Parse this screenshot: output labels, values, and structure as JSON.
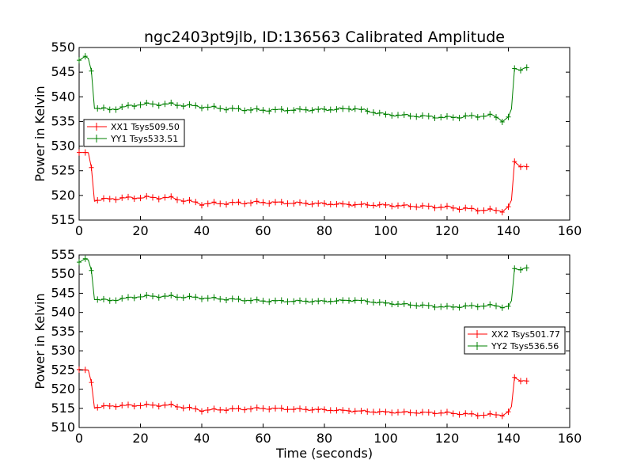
{
  "title": "ngc2403pt9jlb, ID:136563 Calibrated Amplitude",
  "chart_data": [
    {
      "type": "line",
      "title": "ngc2403pt9jlb, ID:136563 Calibrated Amplitude",
      "xlabel": "",
      "ylabel": "Power in Kelvin",
      "xlim": [
        0,
        160
      ],
      "ylim": [
        515,
        550
      ],
      "xticks": [
        0,
        20,
        40,
        60,
        80,
        100,
        120,
        140,
        160
      ],
      "yticks": [
        515,
        520,
        525,
        530,
        535,
        540,
        545,
        550
      ],
      "legend_position": "center-left",
      "series": [
        {
          "name": "XX1 Tsys509.50",
          "color": "#ff0000",
          "keyframes": [
            [
              0,
              528.6
            ],
            [
              2,
              528.6
            ],
            [
              3,
              528.5
            ],
            [
              4,
              525.8
            ],
            [
              5,
              519.0
            ],
            [
              10,
              519.3
            ],
            [
              20,
              519.6
            ],
            [
              30,
              519.5
            ],
            [
              40,
              518.3
            ],
            [
              60,
              518.6
            ],
            [
              80,
              518.3
            ],
            [
              100,
              518.0
            ],
            [
              120,
              517.6
            ],
            [
              130,
              517.1
            ],
            [
              138,
              516.9
            ],
            [
              140,
              517.6
            ],
            [
              141,
              519.0
            ],
            [
              142,
              526.6
            ],
            [
              144,
              526.0
            ],
            [
              146,
              526.0
            ]
          ]
        },
        {
          "name": "YY1 Tsys533.51",
          "color": "#008000",
          "keyframes": [
            [
              0,
              547.3
            ],
            [
              2,
              548.1
            ],
            [
              3,
              547.6
            ],
            [
              4,
              545.4
            ],
            [
              5,
              537.8
            ],
            [
              10,
              537.4
            ],
            [
              20,
              538.5
            ],
            [
              30,
              538.5
            ],
            [
              40,
              538.0
            ],
            [
              50,
              537.5
            ],
            [
              60,
              537.3
            ],
            [
              80,
              537.4
            ],
            [
              90,
              537.6
            ],
            [
              100,
              536.4
            ],
            [
              120,
              535.8
            ],
            [
              130,
              536.1
            ],
            [
              135,
              536.2
            ],
            [
              138,
              535.2
            ],
            [
              140,
              535.8
            ],
            [
              141,
              537.5
            ],
            [
              142,
              545.5
            ],
            [
              144,
              545.6
            ],
            [
              146,
              546.1
            ]
          ]
        }
      ]
    },
    {
      "type": "line",
      "title": "",
      "xlabel": "Time (seconds)",
      "ylabel": "Power in Kelvin",
      "xlim": [
        0,
        160
      ],
      "ylim": [
        510,
        555
      ],
      "xticks": [
        0,
        20,
        40,
        60,
        80,
        100,
        120,
        140,
        160
      ],
      "yticks": [
        510,
        515,
        520,
        525,
        530,
        535,
        540,
        545,
        550,
        555
      ],
      "legend_position": "center-right",
      "series": [
        {
          "name": "XX2 Tsys501.77",
          "color": "#ff0000",
          "keyframes": [
            [
              0,
              525.0
            ],
            [
              2,
              524.9
            ],
            [
              3,
              524.8
            ],
            [
              4,
              521.9
            ],
            [
              5,
              515.2
            ],
            [
              10,
              515.6
            ],
            [
              20,
              515.8
            ],
            [
              30,
              515.8
            ],
            [
              40,
              514.5
            ],
            [
              60,
              515.0
            ],
            [
              80,
              514.6
            ],
            [
              100,
              514.0
            ],
            [
              120,
              513.8
            ],
            [
              130,
              513.3
            ],
            [
              138,
              513.3
            ],
            [
              140,
              514.0
            ],
            [
              141,
              515.4
            ],
            [
              142,
              522.8
            ],
            [
              144,
              522.3
            ],
            [
              146,
              522.3
            ]
          ]
        },
        {
          "name": "YY2 Tsys536.56",
          "color": "#008000",
          "keyframes": [
            [
              0,
              553.0
            ],
            [
              2,
              553.9
            ],
            [
              3,
              553.5
            ],
            [
              4,
              551.1
            ],
            [
              5,
              543.5
            ],
            [
              10,
              543.1
            ],
            [
              20,
              544.2
            ],
            [
              30,
              544.2
            ],
            [
              40,
              543.8
            ],
            [
              60,
              543.0
            ],
            [
              80,
              542.9
            ],
            [
              90,
              543.2
            ],
            [
              100,
              542.4
            ],
            [
              120,
              541.4
            ],
            [
              130,
              541.7
            ],
            [
              135,
              541.8
            ],
            [
              138,
              541.5
            ],
            [
              140,
              541.5
            ],
            [
              141,
              543.0
            ],
            [
              142,
              551.2
            ],
            [
              144,
              551.3
            ],
            [
              146,
              551.8
            ]
          ]
        }
      ]
    }
  ]
}
